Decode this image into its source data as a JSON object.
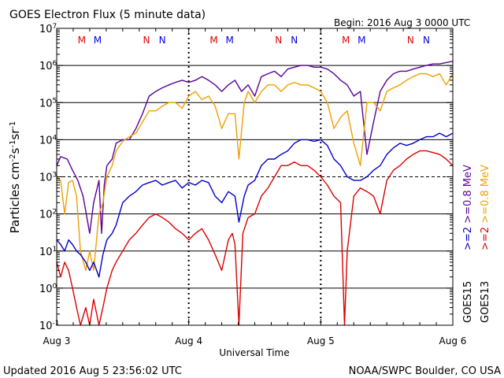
{
  "chart_data": {
    "type": "line",
    "title": "GOES Electron Flux (5 minute data)",
    "begin_label": "Begin: 2016 Aug 3 0000 UTC",
    "xlabel": "Universal Time",
    "ylabel_html": "Particles cm<tspan baseline-shift='super' font-size='10'>-2</tspan>s<tspan baseline-shift='super' font-size='10'>-1</tspan>sr<tspan baseline-shift='super' font-size='10'>-1</tspan>",
    "x_unit": "days since 2016 Aug 3 0000 UTC",
    "xlim": [
      0,
      3
    ],
    "ylim_log10": [
      -1,
      7
    ],
    "y_scale": "log",
    "x_ticks": [
      {
        "value": 0,
        "label": "Aug 3"
      },
      {
        "value": 1,
        "label": "Aug 4"
      },
      {
        "value": 2,
        "label": "Aug 5"
      },
      {
        "value": 3,
        "label": "Aug 6"
      }
    ],
    "y_ticks": [
      {
        "exp": -1,
        "label": "10",
        "sup": "-1"
      },
      {
        "exp": 0,
        "label": "10",
        "sup": "0"
      },
      {
        "exp": 1,
        "label": "10",
        "sup": "1"
      },
      {
        "exp": 2,
        "label": "10",
        "sup": "2"
      },
      {
        "exp": 3,
        "label": "10",
        "sup": "3"
      },
      {
        "exp": 4,
        "label": "10",
        "sup": "4"
      },
      {
        "exp": 5,
        "label": "10",
        "sup": "5"
      },
      {
        "exp": 6,
        "label": "10",
        "sup": "6"
      },
      {
        "exp": 7,
        "label": "10",
        "sup": "7"
      }
    ],
    "solid_gridlines_exp": [
      0,
      1,
      2,
      4,
      5,
      6
    ],
    "dashed_threshold_exp": 3,
    "grid": "horizontal",
    "markers": [
      {
        "x": 0.19,
        "label": "M",
        "color": "#e00000"
      },
      {
        "x": 0.31,
        "label": "M",
        "color": "#0000e0"
      },
      {
        "x": 0.68,
        "label": "N",
        "color": "#e00000"
      },
      {
        "x": 0.8,
        "label": "N",
        "color": "#0000e0"
      },
      {
        "x": 1.19,
        "label": "M",
        "color": "#e00000"
      },
      {
        "x": 1.31,
        "label": "M",
        "color": "#0000e0"
      },
      {
        "x": 1.68,
        "label": "N",
        "color": "#e00000"
      },
      {
        "x": 1.8,
        "label": "N",
        "color": "#0000e0"
      },
      {
        "x": 2.19,
        "label": "M",
        "color": "#e00000"
      },
      {
        "x": 2.31,
        "label": "M",
        "color": "#0000e0"
      },
      {
        "x": 2.68,
        "label": "N",
        "color": "#e00000"
      },
      {
        "x": 2.8,
        "label": "N",
        "color": "#0000e0"
      }
    ],
    "legend": {
      "placement": "right",
      "groups": [
        {
          "satellite": "GOES15",
          "satellite_color": "#000000",
          "entries": [
            {
              "text": ">=2",
              "color": "#0000cc"
            },
            {
              "text": ">=0.8 MeV",
              "color": "#5a0099"
            }
          ]
        },
        {
          "satellite": "GOES13",
          "satellite_color": "#000000",
          "entries": [
            {
              "text": ">=2",
              "color": "#dd0000"
            },
            {
              "text": ">=0.8 MeV",
              "color": "#f0a000"
            }
          ]
        }
      ]
    },
    "series": [
      {
        "name": "GOES15 >=0.8 MeV",
        "color": "#5a0099",
        "points": [
          [
            0,
            2000
          ],
          [
            0.03,
            3500
          ],
          [
            0.08,
            3000
          ],
          [
            0.12,
            1500
          ],
          [
            0.16,
            800
          ],
          [
            0.2,
            300
          ],
          [
            0.25,
            30
          ],
          [
            0.28,
            200
          ],
          [
            0.32,
            800
          ],
          [
            0.34,
            30
          ],
          [
            0.36,
            600
          ],
          [
            0.38,
            2000
          ],
          [
            0.42,
            3000
          ],
          [
            0.45,
            8000
          ],
          [
            0.5,
            10000
          ],
          [
            0.55,
            10000
          ],
          [
            0.6,
            20000
          ],
          [
            0.65,
            50000
          ],
          [
            0.7,
            150000
          ],
          [
            0.75,
            200000
          ],
          [
            0.8,
            250000
          ],
          [
            0.85,
            300000
          ],
          [
            0.9,
            350000
          ],
          [
            0.95,
            400000
          ],
          [
            1.0,
            350000
          ],
          [
            1.05,
            400000
          ],
          [
            1.1,
            500000
          ],
          [
            1.15,
            400000
          ],
          [
            1.2,
            300000
          ],
          [
            1.25,
            200000
          ],
          [
            1.3,
            300000
          ],
          [
            1.35,
            400000
          ],
          [
            1.4,
            200000
          ],
          [
            1.45,
            300000
          ],
          [
            1.5,
            150000
          ],
          [
            1.55,
            500000
          ],
          [
            1.6,
            600000
          ],
          [
            1.65,
            700000
          ],
          [
            1.7,
            500000
          ],
          [
            1.75,
            800000
          ],
          [
            1.8,
            900000
          ],
          [
            1.85,
            1000000
          ],
          [
            1.9,
            1000000
          ],
          [
            1.95,
            900000
          ],
          [
            2.0,
            900000
          ],
          [
            2.05,
            800000
          ],
          [
            2.1,
            600000
          ],
          [
            2.15,
            400000
          ],
          [
            2.2,
            300000
          ],
          [
            2.25,
            150000
          ],
          [
            2.3,
            200000
          ],
          [
            2.35,
            4000
          ],
          [
            2.4,
            30000
          ],
          [
            2.45,
            200000
          ],
          [
            2.5,
            400000
          ],
          [
            2.55,
            600000
          ],
          [
            2.6,
            700000
          ],
          [
            2.65,
            700000
          ],
          [
            2.7,
            800000
          ],
          [
            2.75,
            900000
          ],
          [
            2.8,
            1000000
          ],
          [
            2.85,
            1100000
          ],
          [
            2.9,
            1100000
          ],
          [
            2.95,
            1200000
          ],
          [
            3.0,
            1300000
          ]
        ]
      },
      {
        "name": "GOES13 >=0.8 MeV",
        "color": "#f0a000",
        "points": [
          [
            0,
            1000
          ],
          [
            0.03,
            800
          ],
          [
            0.06,
            100
          ],
          [
            0.09,
            700
          ],
          [
            0.12,
            800
          ],
          [
            0.15,
            300
          ],
          [
            0.18,
            10
          ],
          [
            0.22,
            3
          ],
          [
            0.25,
            10
          ],
          [
            0.28,
            3
          ],
          [
            0.32,
            100
          ],
          [
            0.35,
            200
          ],
          [
            0.38,
            1000
          ],
          [
            0.42,
            2000
          ],
          [
            0.45,
            5000
          ],
          [
            0.5,
            9000
          ],
          [
            0.55,
            12000
          ],
          [
            0.6,
            15000
          ],
          [
            0.65,
            30000
          ],
          [
            0.7,
            60000
          ],
          [
            0.75,
            60000
          ],
          [
            0.8,
            80000
          ],
          [
            0.85,
            100000
          ],
          [
            0.9,
            100000
          ],
          [
            0.95,
            70000
          ],
          [
            1.0,
            150000
          ],
          [
            1.05,
            200000
          ],
          [
            1.1,
            120000
          ],
          [
            1.15,
            150000
          ],
          [
            1.2,
            80000
          ],
          [
            1.25,
            20000
          ],
          [
            1.3,
            50000
          ],
          [
            1.35,
            50000
          ],
          [
            1.38,
            3000
          ],
          [
            1.42,
            100000
          ],
          [
            1.45,
            200000
          ],
          [
            1.5,
            100000
          ],
          [
            1.55,
            200000
          ],
          [
            1.6,
            300000
          ],
          [
            1.65,
            300000
          ],
          [
            1.7,
            200000
          ],
          [
            1.75,
            300000
          ],
          [
            1.8,
            350000
          ],
          [
            1.85,
            300000
          ],
          [
            1.9,
            300000
          ],
          [
            1.95,
            250000
          ],
          [
            2.0,
            200000
          ],
          [
            2.05,
            100000
          ],
          [
            2.1,
            20000
          ],
          [
            2.15,
            40000
          ],
          [
            2.2,
            60000
          ],
          [
            2.25,
            8000
          ],
          [
            2.3,
            2000
          ],
          [
            2.35,
            100000
          ],
          [
            2.4,
            100000
          ],
          [
            2.45,
            60000
          ],
          [
            2.5,
            200000
          ],
          [
            2.55,
            250000
          ],
          [
            2.6,
            300000
          ],
          [
            2.65,
            400000
          ],
          [
            2.7,
            500000
          ],
          [
            2.75,
            600000
          ],
          [
            2.8,
            600000
          ],
          [
            2.85,
            500000
          ],
          [
            2.9,
            600000
          ],
          [
            2.95,
            300000
          ],
          [
            3.0,
            600000
          ]
        ]
      },
      {
        "name": "GOES15 >=2",
        "color": "#0000cc",
        "points": [
          [
            0,
            20
          ],
          [
            0.03,
            15
          ],
          [
            0.06,
            10
          ],
          [
            0.09,
            20
          ],
          [
            0.12,
            15
          ],
          [
            0.15,
            10
          ],
          [
            0.18,
            8
          ],
          [
            0.22,
            5
          ],
          [
            0.25,
            3
          ],
          [
            0.28,
            5
          ],
          [
            0.32,
            2
          ],
          [
            0.35,
            8
          ],
          [
            0.38,
            20
          ],
          [
            0.42,
            30
          ],
          [
            0.45,
            50
          ],
          [
            0.5,
            200
          ],
          [
            0.55,
            300
          ],
          [
            0.6,
            400
          ],
          [
            0.65,
            600
          ],
          [
            0.7,
            700
          ],
          [
            0.75,
            800
          ],
          [
            0.8,
            600
          ],
          [
            0.85,
            700
          ],
          [
            0.9,
            800
          ],
          [
            0.95,
            500
          ],
          [
            1.0,
            700
          ],
          [
            1.05,
            600
          ],
          [
            1.1,
            800
          ],
          [
            1.15,
            700
          ],
          [
            1.2,
            300
          ],
          [
            1.25,
            200
          ],
          [
            1.3,
            400
          ],
          [
            1.35,
            300
          ],
          [
            1.38,
            60
          ],
          [
            1.42,
            300
          ],
          [
            1.45,
            600
          ],
          [
            1.5,
            800
          ],
          [
            1.55,
            2000
          ],
          [
            1.6,
            3000
          ],
          [
            1.65,
            3000
          ],
          [
            1.7,
            4000
          ],
          [
            1.75,
            5000
          ],
          [
            1.8,
            8000
          ],
          [
            1.85,
            10000
          ],
          [
            1.9,
            10000
          ],
          [
            1.95,
            9000
          ],
          [
            2.0,
            10000
          ],
          [
            2.05,
            7000
          ],
          [
            2.1,
            3000
          ],
          [
            2.15,
            2000
          ],
          [
            2.2,
            1000
          ],
          [
            2.25,
            800
          ],
          [
            2.3,
            800
          ],
          [
            2.35,
            1000
          ],
          [
            2.4,
            1500
          ],
          [
            2.45,
            2000
          ],
          [
            2.5,
            4000
          ],
          [
            2.55,
            6000
          ],
          [
            2.6,
            8000
          ],
          [
            2.65,
            7000
          ],
          [
            2.7,
            8000
          ],
          [
            2.75,
            10000
          ],
          [
            2.8,
            12000
          ],
          [
            2.85,
            12000
          ],
          [
            2.9,
            15000
          ],
          [
            2.95,
            12000
          ],
          [
            3.0,
            15000
          ]
        ]
      },
      {
        "name": "GOES13 >=2",
        "color": "#dd0000",
        "points": [
          [
            0,
            5
          ],
          [
            0.03,
            2
          ],
          [
            0.06,
            5
          ],
          [
            0.09,
            3
          ],
          [
            0.12,
            1
          ],
          [
            0.15,
            0.3
          ],
          [
            0.18,
            0.1
          ],
          [
            0.22,
            0.3
          ],
          [
            0.25,
            0.1
          ],
          [
            0.28,
            0.5
          ],
          [
            0.32,
            0.1
          ],
          [
            0.35,
            0.3
          ],
          [
            0.38,
            1
          ],
          [
            0.42,
            3
          ],
          [
            0.45,
            5
          ],
          [
            0.5,
            10
          ],
          [
            0.55,
            20
          ],
          [
            0.6,
            30
          ],
          [
            0.65,
            50
          ],
          [
            0.7,
            80
          ],
          [
            0.75,
            100
          ],
          [
            0.8,
            80
          ],
          [
            0.85,
            60
          ],
          [
            0.9,
            40
          ],
          [
            0.95,
            30
          ],
          [
            1.0,
            20
          ],
          [
            1.05,
            30
          ],
          [
            1.1,
            40
          ],
          [
            1.15,
            20
          ],
          [
            1.2,
            8
          ],
          [
            1.25,
            3
          ],
          [
            1.3,
            20
          ],
          [
            1.33,
            30
          ],
          [
            1.35,
            15
          ],
          [
            1.38,
            0.1
          ],
          [
            1.41,
            30
          ],
          [
            1.45,
            80
          ],
          [
            1.5,
            100
          ],
          [
            1.55,
            300
          ],
          [
            1.6,
            500
          ],
          [
            1.65,
            1000
          ],
          [
            1.7,
            2000
          ],
          [
            1.75,
            2000
          ],
          [
            1.8,
            2500
          ],
          [
            1.85,
            2000
          ],
          [
            1.9,
            2000
          ],
          [
            1.95,
            1500
          ],
          [
            2.0,
            1000
          ],
          [
            2.05,
            600
          ],
          [
            2.1,
            300
          ],
          [
            2.15,
            200
          ],
          [
            2.18,
            0.1
          ],
          [
            2.2,
            10
          ],
          [
            2.25,
            300
          ],
          [
            2.3,
            500
          ],
          [
            2.35,
            400
          ],
          [
            2.4,
            300
          ],
          [
            2.45,
            100
          ],
          [
            2.5,
            800
          ],
          [
            2.55,
            1500
          ],
          [
            2.6,
            2000
          ],
          [
            2.65,
            3000
          ],
          [
            2.7,
            4000
          ],
          [
            2.75,
            5000
          ],
          [
            2.8,
            5000
          ],
          [
            2.85,
            4500
          ],
          [
            2.9,
            4000
          ],
          [
            2.95,
            3000
          ],
          [
            3.0,
            2000
          ]
        ]
      }
    ]
  },
  "footer": {
    "updated": "Updated 2016 Aug  5 23:56:02 UTC",
    "source": "NOAA/SWPC Boulder, CO USA"
  }
}
